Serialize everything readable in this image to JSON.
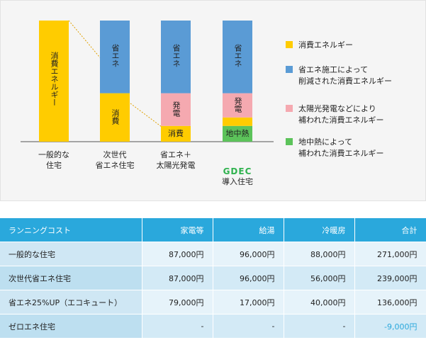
{
  "chart_data": {
    "type": "bar",
    "stacked": true,
    "categories": [
      {
        "line1": "一般的な",
        "line2": "住宅"
      },
      {
        "line1": "次世代",
        "line2": "省エネ住宅"
      },
      {
        "line1": "省エネ＋",
        "line2": "太陽光発電"
      },
      {
        "line1": "",
        "line2": "導入住宅",
        "logo": "GDEC"
      }
    ],
    "segments": [
      [
        {
          "key": "consumption",
          "value": 100,
          "label": "消費エネルギー"
        }
      ],
      [
        {
          "key": "consumption",
          "value": 40,
          "label": "消費"
        },
        {
          "key": "saving",
          "value": 60,
          "label": "省エネ"
        }
      ],
      [
        {
          "key": "consumption",
          "value": 13,
          "label": "消費"
        },
        {
          "key": "solar",
          "value": 27,
          "label": "発電"
        },
        {
          "key": "saving",
          "value": 60,
          "label": "省エネ"
        }
      ],
      [
        {
          "key": "geothermal",
          "value": 13,
          "label": "地中熱"
        },
        {
          "key": "consumption",
          "value": 7,
          "label": ""
        },
        {
          "key": "solar",
          "value": 20,
          "label": "発電"
        },
        {
          "key": "saving",
          "value": 60,
          "label": "省エネ"
        }
      ]
    ],
    "legend": [
      {
        "key": "consumption",
        "text": "消費エネルギー",
        "color": "#ffcc00"
      },
      {
        "key": "saving",
        "text": "省エネ施工によって\n削減された消費エネルギー",
        "color": "#5a9bd5"
      },
      {
        "key": "solar",
        "text": "太陽光発電などにより\n補われた消費エネルギー",
        "color": "#f5a9b0"
      },
      {
        "key": "geothermal",
        "text": "地中熱によって\n補われた消費エネルギー",
        "color": "#5cc35a"
      }
    ],
    "colors": {
      "consumption": "#ffcc00",
      "saving": "#5a9bd5",
      "solar": "#f5a9b0",
      "geothermal": "#5cc35a"
    },
    "ylim": [
      0,
      100
    ],
    "legend_position": "right"
  },
  "table": {
    "headers": [
      "ランニングコスト",
      "家電等",
      "給湯",
      "冷暖房",
      "合計"
    ],
    "rows": [
      [
        "一般的な住宅",
        "87,000円",
        "96,000円",
        "88,000円",
        "271,000円"
      ],
      [
        "次世代省エネ住宅",
        "87,000円",
        "96,000円",
        "56,000円",
        "239,000円"
      ],
      [
        "省エネ25%UP（エコキュート）",
        "79,000円",
        "17,000円",
        "40,000円",
        "136,000円"
      ],
      [
        "ゼロエネ住宅",
        "-",
        "-",
        "-",
        "-9,000円"
      ]
    ]
  }
}
